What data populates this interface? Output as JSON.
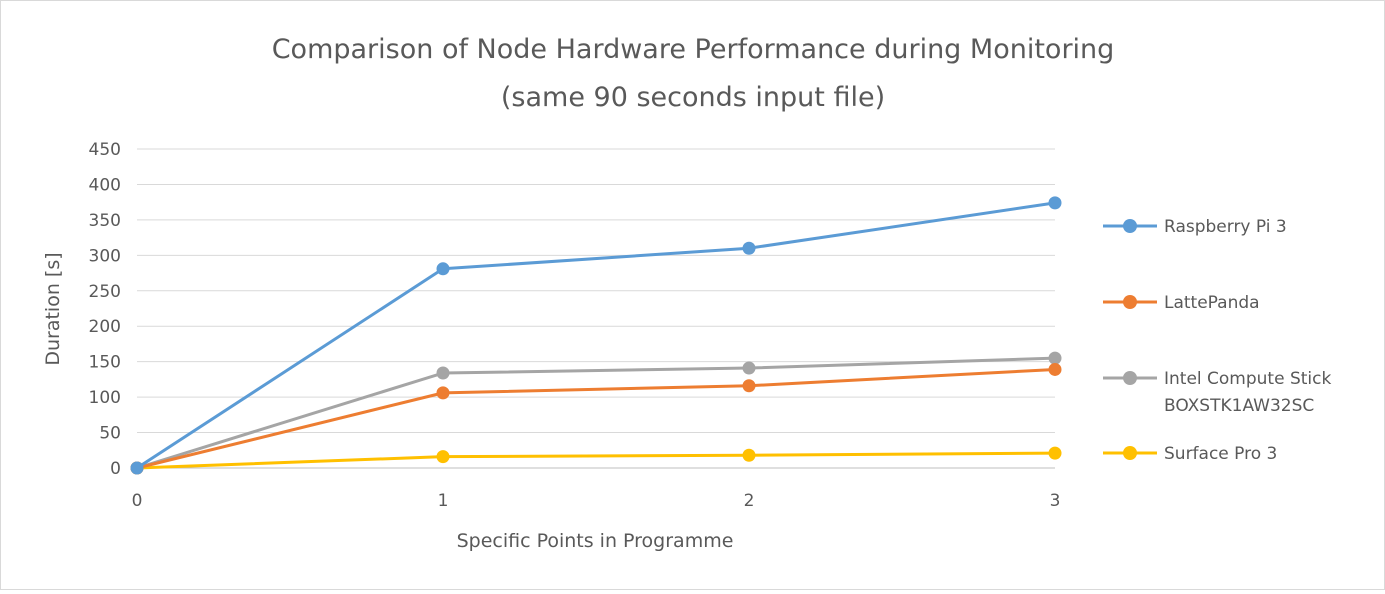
{
  "chart_data": {
    "type": "line",
    "title": "Comparison of Node Hardware Performance during Monitoring",
    "subtitle": "(same 90 seconds input file)",
    "xlabel": "Specific Points in Programme",
    "ylabel": "Duration [s]",
    "x": [
      0,
      1,
      2,
      3
    ],
    "ylim": [
      0,
      450
    ],
    "yticks": [
      0,
      50,
      100,
      150,
      200,
      250,
      300,
      350,
      400,
      450
    ],
    "grid": true,
    "legend_position": "right",
    "series": [
      {
        "name": "Raspberry Pi 3",
        "color": "#5B9BD5",
        "values": [
          0,
          281,
          310,
          374
        ]
      },
      {
        "name": "LattePanda",
        "color": "#ED7D31",
        "values": [
          0,
          106,
          116,
          139
        ]
      },
      {
        "name": "Intel Compute Stick BOXSTK1AW32SC",
        "name_lines": [
          "Intel Compute Stick",
          "BOXSTK1AW32SC"
        ],
        "color": "#A5A5A5",
        "values": [
          0,
          134,
          141,
          155
        ]
      },
      {
        "name": "Surface Pro 3",
        "color": "#FFC000",
        "values": [
          0,
          16,
          18,
          21
        ]
      }
    ]
  }
}
